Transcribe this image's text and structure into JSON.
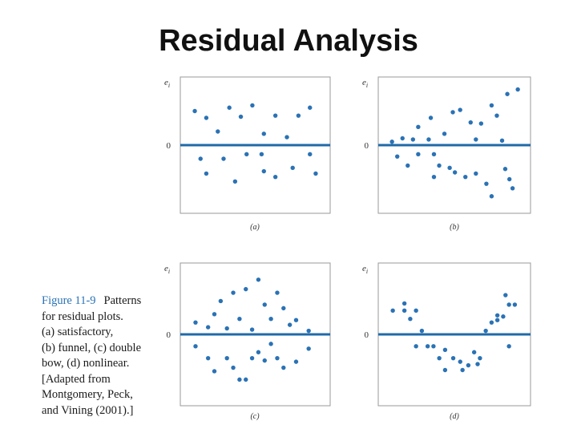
{
  "page": {
    "title": "Residual Analysis"
  },
  "caption": {
    "figure_label": "Figure 11-9",
    "line1_rest": "Patterns",
    "lines": [
      "for residual plots.",
      "(a) satisfactory,",
      "(b) funnel, (c) double",
      "bow, (d) nonlinear.",
      "[Adapted from",
      "Montgomery, Peck,",
      "and Vining (2001).]"
    ]
  },
  "colors": {
    "dots": "#2a72b5",
    "zero_line": "#1f6aa8",
    "frame": "#9a9a9a"
  },
  "chart_data": [
    {
      "type": "scatter",
      "panel_label": "(a)",
      "pattern": "satisfactory",
      "ylabel": "e",
      "ylabel_sub": "i",
      "zero_label": "0",
      "ylim": [
        -6,
        6
      ],
      "points": [
        [
          1,
          3
        ],
        [
          2,
          2.4
        ],
        [
          3,
          1.2
        ],
        [
          4,
          3.3
        ],
        [
          5,
          2.5
        ],
        [
          6,
          3.5
        ],
        [
          7,
          1
        ],
        [
          8,
          2.6
        ],
        [
          9,
          0.7
        ],
        [
          10,
          2.6
        ],
        [
          11,
          3.3
        ],
        [
          1.5,
          -1.2
        ],
        [
          2,
          -2.5
        ],
        [
          3.5,
          -1.2
        ],
        [
          4.5,
          -3.2
        ],
        [
          5.5,
          -0.8
        ],
        [
          7,
          -2.3
        ],
        [
          8,
          -2.8
        ],
        [
          6.8,
          -0.8
        ],
        [
          9.5,
          -2
        ],
        [
          11,
          -0.8
        ],
        [
          11.5,
          -2.5
        ]
      ]
    },
    {
      "type": "scatter",
      "panel_label": "(b)",
      "pattern": "funnel",
      "ylabel": "e",
      "ylabel_sub": "i",
      "zero_label": "0",
      "ylim": [
        -6,
        6
      ],
      "points": [
        [
          1,
          0.3
        ],
        [
          1.5,
          -1
        ],
        [
          2,
          0.6
        ],
        [
          2.5,
          -1.8
        ],
        [
          3,
          0.5
        ],
        [
          3.5,
          1.6
        ],
        [
          3.5,
          -0.8
        ],
        [
          4.5,
          0.5
        ],
        [
          4.7,
          2.4
        ],
        [
          5,
          -0.8
        ],
        [
          5.5,
          -1.8
        ],
        [
          6,
          1
        ],
        [
          5,
          -2.8
        ],
        [
          6.5,
          -2
        ],
        [
          6.8,
          2.9
        ],
        [
          7,
          -2.4
        ],
        [
          7.5,
          3.1
        ],
        [
          8,
          -2.8
        ],
        [
          8.5,
          2
        ],
        [
          9,
          0.5
        ],
        [
          9,
          -2.5
        ],
        [
          9.5,
          1.9
        ],
        [
          10,
          -3.4
        ],
        [
          10.5,
          3.5
        ],
        [
          10.5,
          -4.5
        ],
        [
          11,
          2.6
        ],
        [
          11.5,
          0.4
        ],
        [
          11.8,
          -2.1
        ],
        [
          12,
          4.5
        ],
        [
          12.2,
          -3
        ],
        [
          12.5,
          -3.8
        ],
        [
          13,
          4.9
        ]
      ]
    },
    {
      "type": "scatter",
      "panel_label": "(c)",
      "pattern": "double bow",
      "ylabel": "e",
      "ylabel_sub": "i",
      "zero_label": "0",
      "ylim": [
        -6,
        6
      ],
      "points": [
        [
          1,
          1
        ],
        [
          2,
          0.6
        ],
        [
          2.5,
          1.7
        ],
        [
          3,
          2.8
        ],
        [
          3.5,
          0.5
        ],
        [
          4,
          3.5
        ],
        [
          4.5,
          1.3
        ],
        [
          5,
          3.8
        ],
        [
          5.5,
          0.4
        ],
        [
          6,
          4.6
        ],
        [
          6.5,
          2.5
        ],
        [
          7,
          1.3
        ],
        [
          7.5,
          3.5
        ],
        [
          8,
          2.2
        ],
        [
          8.5,
          0.8
        ],
        [
          9,
          1.2
        ],
        [
          10,
          0.3
        ],
        [
          1,
          -1
        ],
        [
          2,
          -2
        ],
        [
          2.5,
          -3.1
        ],
        [
          3.5,
          -2
        ],
        [
          4,
          -2.8
        ],
        [
          4.5,
          -3.8
        ],
        [
          5,
          -3.8
        ],
        [
          5.5,
          -2
        ],
        [
          6,
          -1.5
        ],
        [
          6.5,
          -2.2
        ],
        [
          7,
          -0.8
        ],
        [
          7.5,
          -2
        ],
        [
          8,
          -2.8
        ],
        [
          9,
          -2.3
        ],
        [
          10,
          -1.2
        ]
      ]
    },
    {
      "type": "scatter",
      "panel_label": "(d)",
      "pattern": "nonlinear",
      "ylabel": "e",
      "ylabel_sub": "i",
      "zero_label": "0",
      "ylim": [
        -6,
        6
      ],
      "points": [
        [
          1,
          2
        ],
        [
          2,
          2.6
        ],
        [
          2,
          2
        ],
        [
          2.5,
          1.3
        ],
        [
          3,
          2
        ],
        [
          3.5,
          0.3
        ],
        [
          3,
          -1
        ],
        [
          4,
          -1
        ],
        [
          4.5,
          -1
        ],
        [
          5,
          -2
        ],
        [
          5.5,
          -1.3
        ],
        [
          5.5,
          -3
        ],
        [
          6.2,
          -2
        ],
        [
          6.8,
          -2.3
        ],
        [
          7,
          -3
        ],
        [
          7.5,
          -2.6
        ],
        [
          8,
          -1.5
        ],
        [
          8.5,
          -2
        ],
        [
          8.3,
          -2.5
        ],
        [
          9,
          0.3
        ],
        [
          9.5,
          1
        ],
        [
          10,
          1.6
        ],
        [
          10,
          1.2
        ],
        [
          10.5,
          1.5
        ],
        [
          11,
          -1
        ],
        [
          10.7,
          3.3
        ],
        [
          11,
          2.5
        ],
        [
          11.5,
          2.5
        ]
      ]
    }
  ]
}
